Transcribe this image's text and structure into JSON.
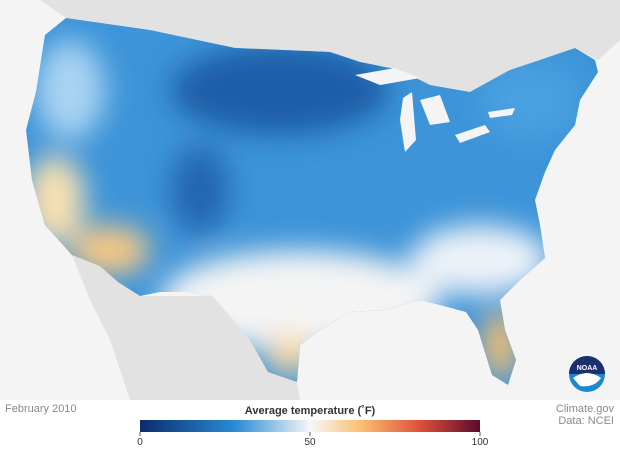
{
  "date_label": "February 2010",
  "legend": {
    "title": "Average temperature (˚F)",
    "range": [
      0,
      100
    ],
    "ticks": [
      0,
      50,
      100
    ]
  },
  "credits": {
    "site": "Climate.gov",
    "source": "Data: NCEI"
  },
  "logo": {
    "text": "NOAA"
  }
}
